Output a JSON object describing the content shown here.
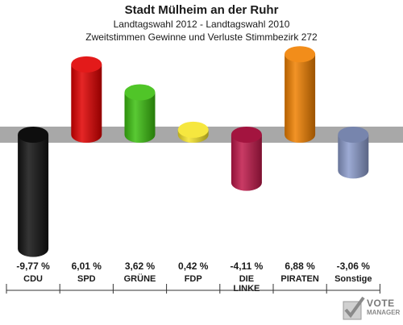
{
  "header": {
    "title": "Stadt Mülheim an der Ruhr",
    "subtitle": "Landtagswahl 2012 - Landtagswahl 2010",
    "subtitle2": "Zweitstimmen Gewinne und Verluste Stimmbezirk 272"
  },
  "chart_data": {
    "type": "bar",
    "categories": [
      "CDU",
      "SPD",
      "GRÜNE",
      "FDP",
      "DIE LINKE",
      "PIRATEN",
      "Sonstige"
    ],
    "values": [
      -9.77,
      6.01,
      3.62,
      0.42,
      -4.11,
      6.88,
      -3.06
    ],
    "value_labels": [
      "-9,77 %",
      "6,01 %",
      "3,62 %",
      "0,42 %",
      "-4,11 %",
      "6,88 %",
      "-3,06 %"
    ],
    "colors": [
      "#111111",
      "#e00000",
      "#3cbf10",
      "#f5e42a",
      "#c0184a",
      "#f08000",
      "#8c9ccc"
    ],
    "ylim": [
      -10,
      8
    ],
    "grid": false
  },
  "logo": {
    "line1": "VOTE",
    "line2": "MANAGER"
  }
}
